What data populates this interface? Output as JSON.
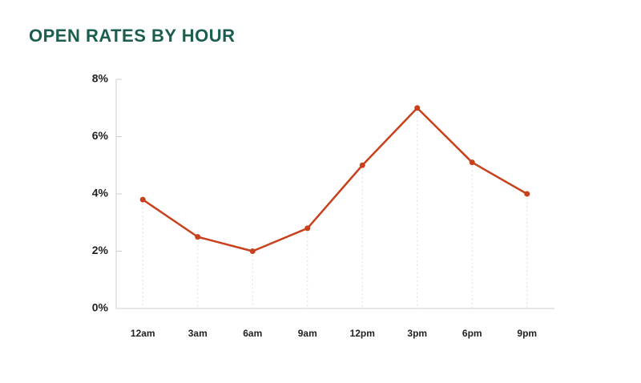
{
  "chart_data": {
    "type": "line",
    "title": "OPEN RATES BY HOUR",
    "categories": [
      "12am",
      "3am",
      "6am",
      "9am",
      "12pm",
      "3pm",
      "6pm",
      "9pm"
    ],
    "values": [
      3.8,
      2.5,
      2.0,
      2.8,
      5.0,
      7.0,
      5.1,
      4.0
    ],
    "color": "#c8401c",
    "ylim": [
      0,
      8
    ],
    "yticks": [
      {
        "value": 0,
        "label": "0%"
      },
      {
        "value": 2,
        "label": "2%"
      },
      {
        "value": 4,
        "label": "4%"
      },
      {
        "value": 6,
        "label": "6%"
      },
      {
        "value": 8,
        "label": "8%"
      }
    ],
    "grid": false
  }
}
